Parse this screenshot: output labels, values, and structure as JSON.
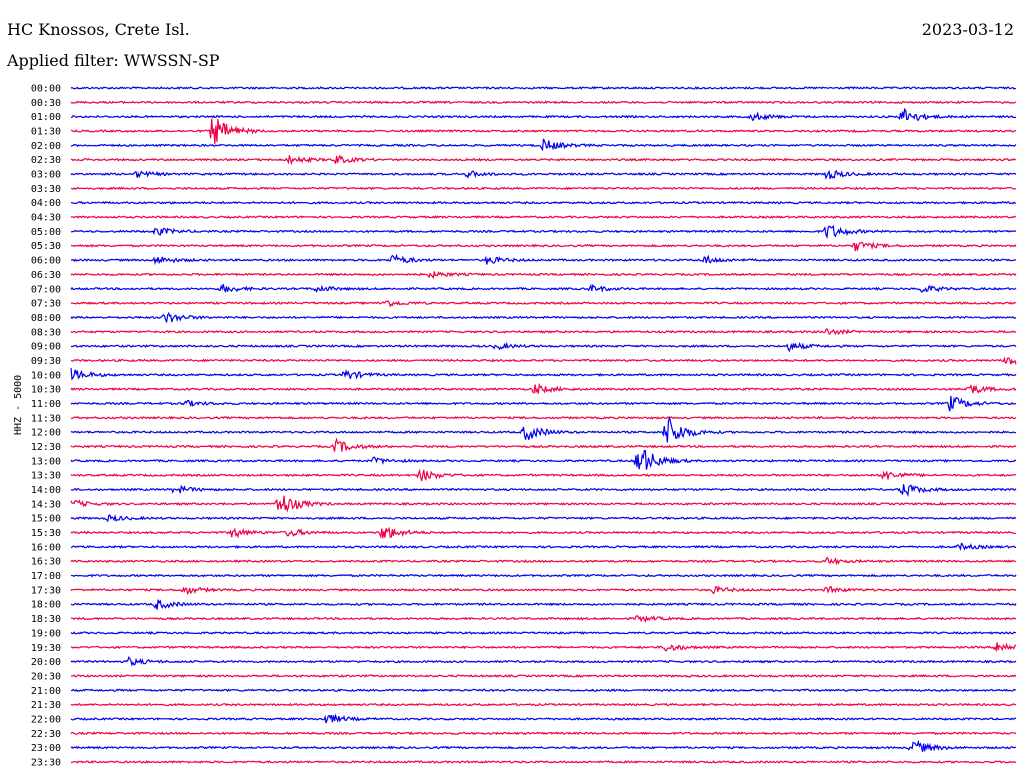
{
  "header": {
    "station": "HC Knossos, Crete Isl.",
    "date": "2023-03-12",
    "filter": "Applied filter: WWSSN-SP"
  },
  "chart_data": {
    "type": "line",
    "title": "HC Knossos, Crete Isl.",
    "subtitle": "Applied filter: WWSSN-SP",
    "ylabel": "HHZ - 5000",
    "xlabel": "",
    "colors": [
      "#0000ee",
      "#ee0044"
    ],
    "rows": [
      {
        "label": "00:00",
        "events": []
      },
      {
        "label": "00:30",
        "events": []
      },
      {
        "label": "01:00",
        "events": [
          {
            "x": 0.72,
            "amp": 4
          },
          {
            "x": 0.88,
            "amp": 9
          }
        ]
      },
      {
        "label": "01:30",
        "events": [
          {
            "x": 0.15,
            "amp": 16
          }
        ]
      },
      {
        "label": "02:00",
        "events": [
          {
            "x": 0.5,
            "amp": 6
          }
        ]
      },
      {
        "label": "02:30",
        "events": [
          {
            "x": 0.23,
            "amp": 4
          },
          {
            "x": 0.28,
            "amp": 4
          }
        ]
      },
      {
        "label": "03:00",
        "events": [
          {
            "x": 0.07,
            "amp": 3
          },
          {
            "x": 0.42,
            "amp": 3
          },
          {
            "x": 0.8,
            "amp": 5
          }
        ]
      },
      {
        "label": "03:30",
        "events": []
      },
      {
        "label": "04:00",
        "events": []
      },
      {
        "label": "04:30",
        "events": []
      },
      {
        "label": "05:00",
        "events": [
          {
            "x": 0.09,
            "amp": 4
          },
          {
            "x": 0.8,
            "amp": 8
          }
        ]
      },
      {
        "label": "05:30",
        "events": [
          {
            "x": 0.83,
            "amp": 5
          }
        ]
      },
      {
        "label": "06:00",
        "events": [
          {
            "x": 0.09,
            "amp": 4
          },
          {
            "x": 0.34,
            "amp": 5
          },
          {
            "x": 0.44,
            "amp": 4
          },
          {
            "x": 0.67,
            "amp": 4
          }
        ]
      },
      {
        "label": "06:30",
        "events": [
          {
            "x": 0.38,
            "amp": 3
          }
        ]
      },
      {
        "label": "07:00",
        "events": [
          {
            "x": 0.16,
            "amp": 4
          },
          {
            "x": 0.26,
            "amp": 3
          },
          {
            "x": 0.55,
            "amp": 3
          },
          {
            "x": 0.9,
            "amp": 4
          }
        ]
      },
      {
        "label": "07:30",
        "events": [
          {
            "x": 0.33,
            "amp": 4
          }
        ]
      },
      {
        "label": "08:00",
        "events": [
          {
            "x": 0.1,
            "amp": 6
          }
        ]
      },
      {
        "label": "08:30",
        "events": [
          {
            "x": 0.8,
            "amp": 3
          }
        ]
      },
      {
        "label": "09:00",
        "events": [
          {
            "x": 0.45,
            "amp": 3
          },
          {
            "x": 0.76,
            "amp": 4
          }
        ]
      },
      {
        "label": "09:30",
        "events": [
          {
            "x": 0.99,
            "amp": 6
          }
        ]
      },
      {
        "label": "10:00",
        "events": [
          {
            "x": 0.0,
            "amp": 6
          },
          {
            "x": 0.29,
            "amp": 5
          }
        ]
      },
      {
        "label": "10:30",
        "events": [
          {
            "x": 0.49,
            "amp": 5
          },
          {
            "x": 0.95,
            "amp": 5
          }
        ]
      },
      {
        "label": "11:00",
        "events": [
          {
            "x": 0.12,
            "amp": 3
          },
          {
            "x": 0.93,
            "amp": 8
          }
        ]
      },
      {
        "label": "11:30",
        "events": []
      },
      {
        "label": "12:00",
        "events": [
          {
            "x": 0.48,
            "amp": 9
          },
          {
            "x": 0.63,
            "amp": 18
          }
        ]
      },
      {
        "label": "12:30",
        "events": [
          {
            "x": 0.28,
            "amp": 7
          }
        ]
      },
      {
        "label": "13:00",
        "events": [
          {
            "x": 0.32,
            "amp": 3
          },
          {
            "x": 0.6,
            "amp": 18
          }
        ]
      },
      {
        "label": "13:30",
        "events": [
          {
            "x": 0.37,
            "amp": 6
          },
          {
            "x": 0.86,
            "amp": 5
          }
        ]
      },
      {
        "label": "14:00",
        "events": [
          {
            "x": 0.11,
            "amp": 4
          },
          {
            "x": 0.88,
            "amp": 7
          }
        ]
      },
      {
        "label": "14:30",
        "events": [
          {
            "x": 0.0,
            "amp": 4
          },
          {
            "x": 0.22,
            "amp": 13
          }
        ]
      },
      {
        "label": "15:00",
        "events": [
          {
            "x": 0.04,
            "amp": 3
          }
        ]
      },
      {
        "label": "15:30",
        "events": [
          {
            "x": 0.17,
            "amp": 5
          },
          {
            "x": 0.23,
            "amp": 4
          },
          {
            "x": 0.33,
            "amp": 8
          }
        ]
      },
      {
        "label": "16:00",
        "events": [
          {
            "x": 0.94,
            "amp": 3
          }
        ]
      },
      {
        "label": "16:30",
        "events": [
          {
            "x": 0.8,
            "amp": 3
          }
        ]
      },
      {
        "label": "17:00",
        "events": []
      },
      {
        "label": "17:30",
        "events": [
          {
            "x": 0.12,
            "amp": 4
          },
          {
            "x": 0.68,
            "amp": 3
          },
          {
            "x": 0.8,
            "amp": 3
          }
        ]
      },
      {
        "label": "18:00",
        "events": [
          {
            "x": 0.09,
            "amp": 5
          }
        ]
      },
      {
        "label": "18:30",
        "events": [
          {
            "x": 0.6,
            "amp": 3
          }
        ]
      },
      {
        "label": "19:00",
        "events": []
      },
      {
        "label": "19:30",
        "events": [
          {
            "x": 0.63,
            "amp": 4
          },
          {
            "x": 0.98,
            "amp": 6
          }
        ]
      },
      {
        "label": "20:00",
        "events": [
          {
            "x": 0.06,
            "amp": 4
          }
        ]
      },
      {
        "label": "20:30",
        "events": []
      },
      {
        "label": "21:00",
        "events": []
      },
      {
        "label": "21:30",
        "events": []
      },
      {
        "label": "22:00",
        "events": [
          {
            "x": 0.27,
            "amp": 5
          }
        ]
      },
      {
        "label": "22:30",
        "events": []
      },
      {
        "label": "23:00",
        "events": [
          {
            "x": 0.89,
            "amp": 8
          }
        ]
      },
      {
        "label": "23:30",
        "events": []
      }
    ]
  }
}
